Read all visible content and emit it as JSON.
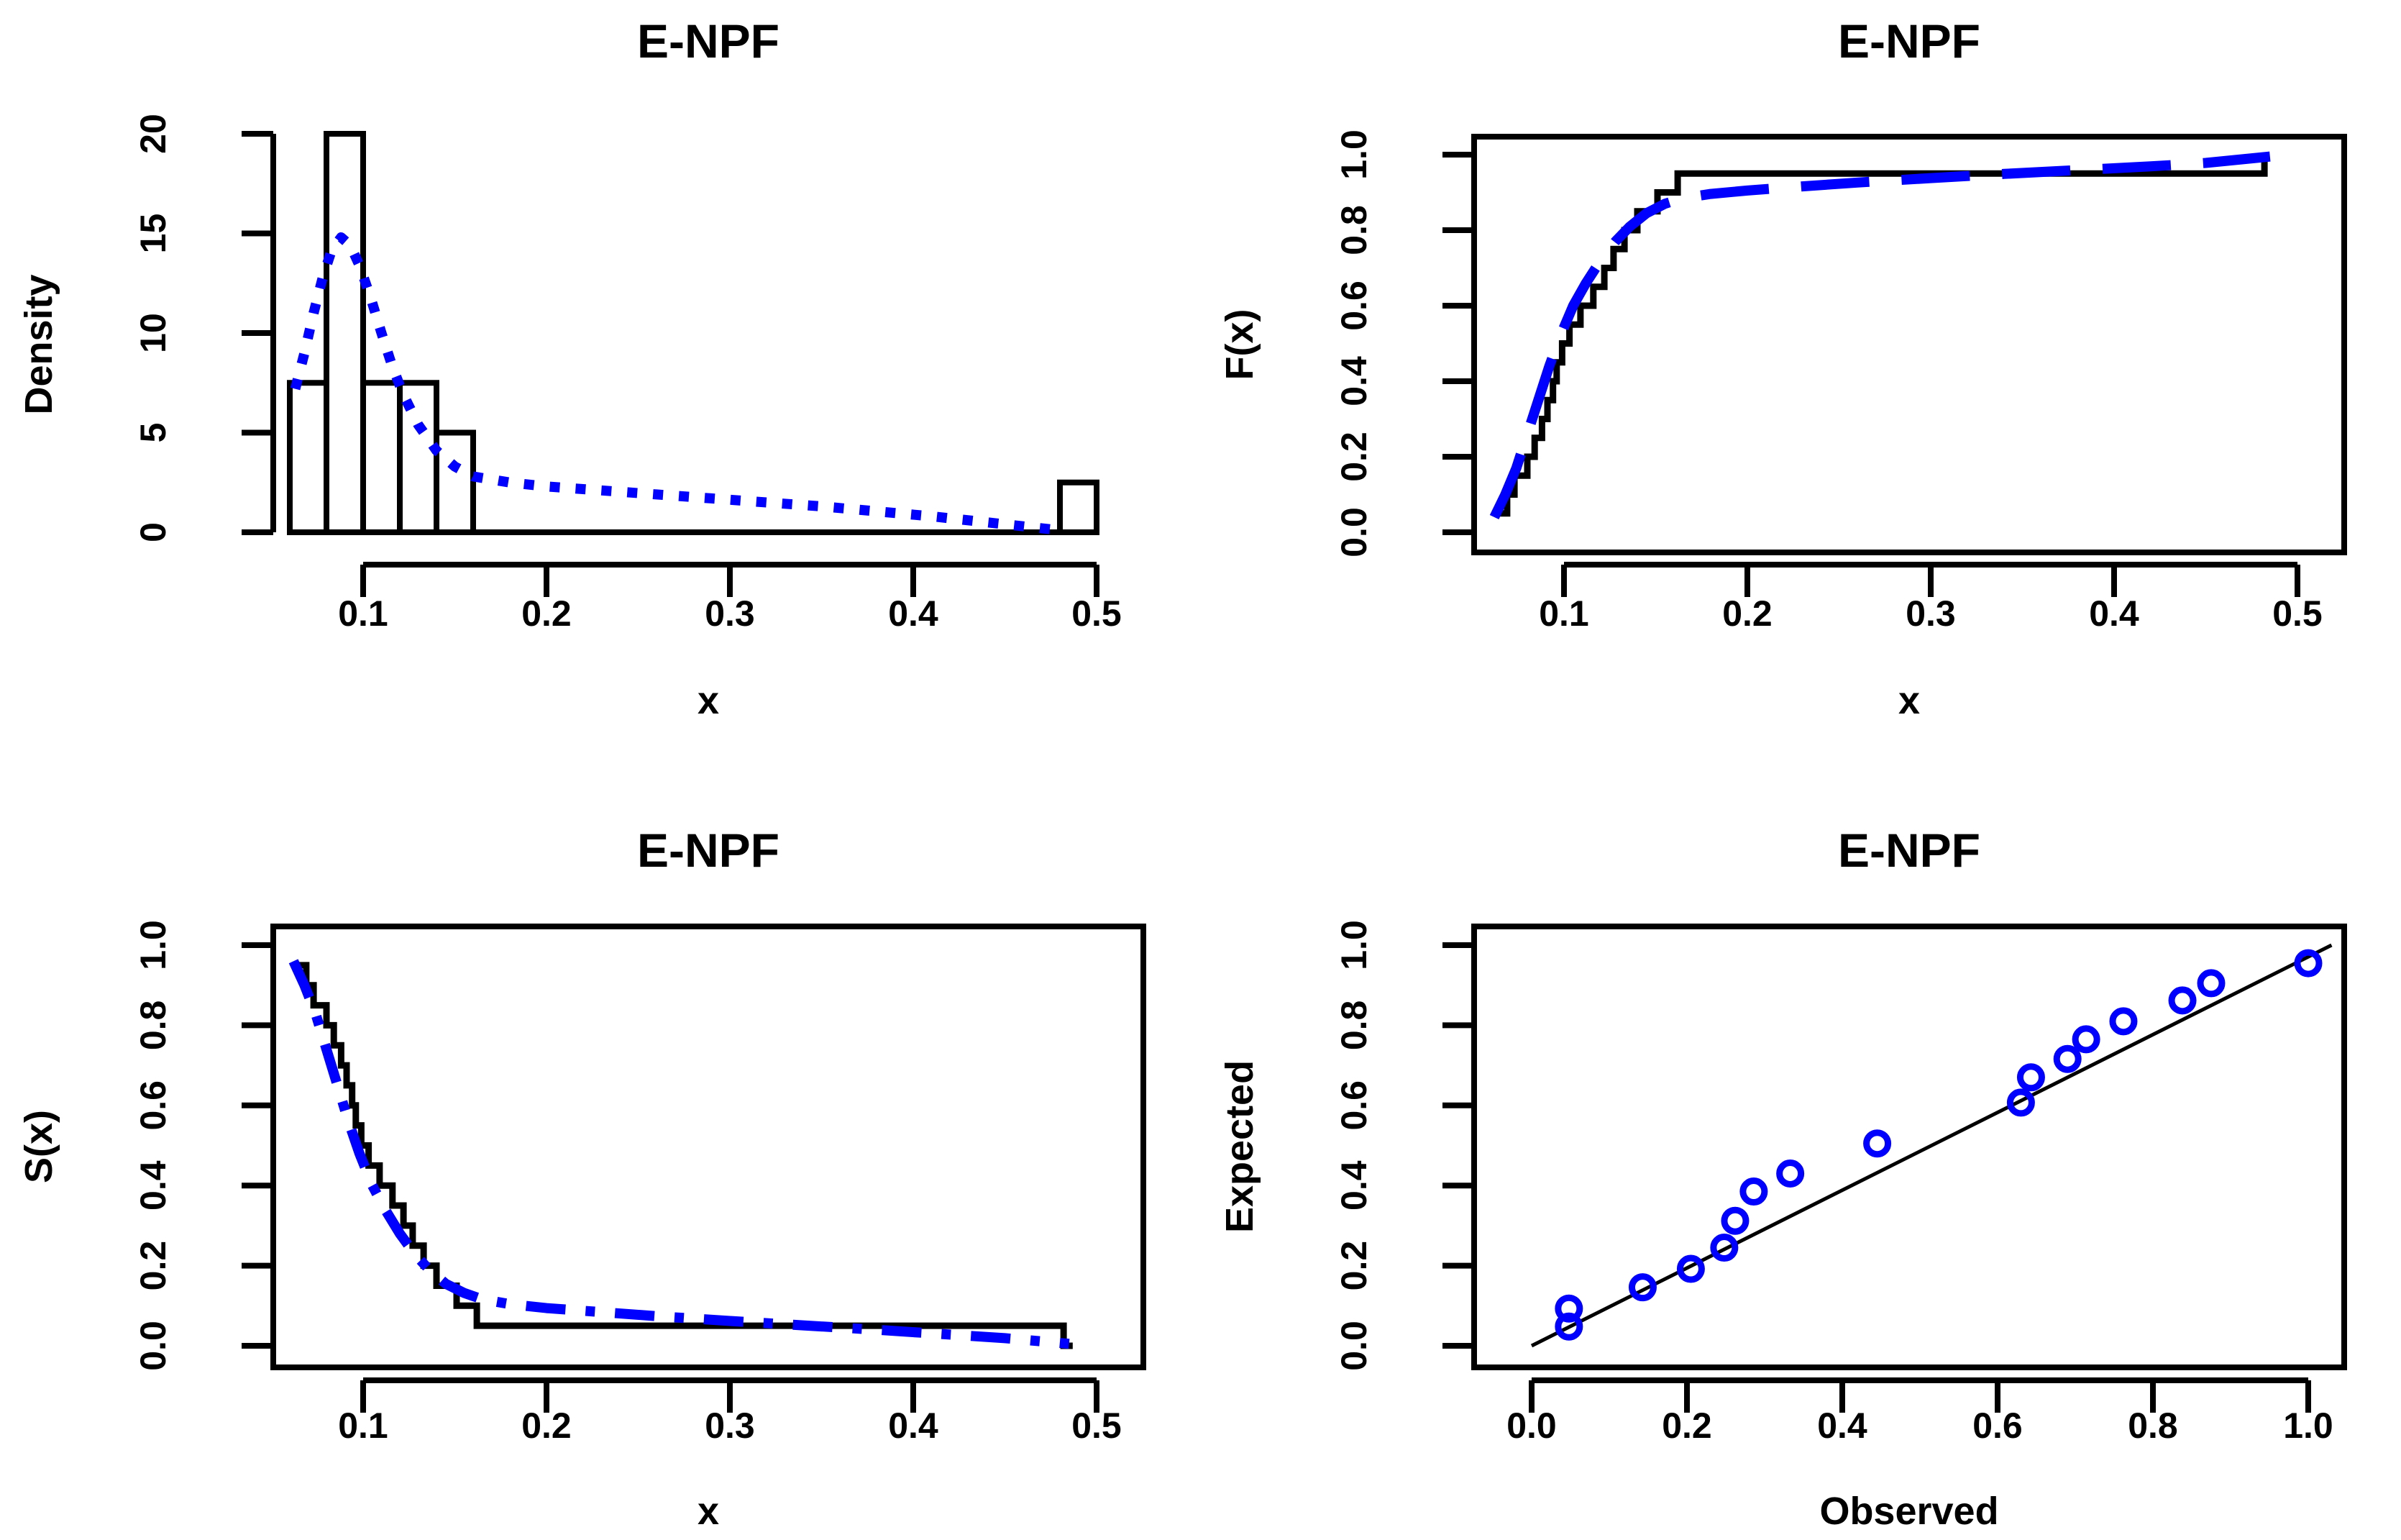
{
  "colors": {
    "accent_blue": "#0000ff",
    "axis_black": "#000000",
    "background": "#ffffff"
  },
  "chart_data": [
    {
      "type": "bar",
      "subtype": "histogram-with-density-curve",
      "title": "E-NPF",
      "xlabel": "x",
      "ylabel": "Density",
      "boxed": false,
      "xlim": [
        0.043,
        0.525
      ],
      "ylim": [
        0,
        20.8
      ],
      "x_ticks": [
        0.1,
        0.2,
        0.3,
        0.4,
        0.5
      ],
      "x_tick_labels": [
        "0.1",
        "0.2",
        "0.3",
        "0.4",
        "0.5"
      ],
      "y_ticks": [
        0,
        5,
        10,
        15,
        20
      ],
      "y_tick_labels": [
        "0",
        "5",
        "10",
        "15",
        "20"
      ],
      "bins": {
        "edges": [
          0.06,
          0.08,
          0.1,
          0.12,
          0.14,
          0.16,
          0.48,
          0.5
        ],
        "densities": [
          7.5,
          20,
          7.5,
          7.5,
          5,
          0,
          2.5
        ]
      },
      "density_curve": {
        "color": "#0000ff",
        "line_style": "dotted",
        "points": [
          [
            0.063,
            7.2
          ],
          [
            0.068,
            9.0
          ],
          [
            0.073,
            11.0
          ],
          [
            0.078,
            12.8
          ],
          [
            0.083,
            14.2
          ],
          [
            0.088,
            14.8
          ],
          [
            0.093,
            14.4
          ],
          [
            0.098,
            13.4
          ],
          [
            0.104,
            11.8
          ],
          [
            0.11,
            10.0
          ],
          [
            0.116,
            8.3
          ],
          [
            0.122,
            6.9
          ],
          [
            0.13,
            5.4
          ],
          [
            0.14,
            4.1
          ],
          [
            0.15,
            3.3
          ],
          [
            0.16,
            2.8
          ],
          [
            0.18,
            2.5
          ],
          [
            0.2,
            2.3
          ],
          [
            0.23,
            2.1
          ],
          [
            0.26,
            1.9
          ],
          [
            0.29,
            1.7
          ],
          [
            0.32,
            1.5
          ],
          [
            0.35,
            1.3
          ],
          [
            0.38,
            1.05
          ],
          [
            0.41,
            0.8
          ],
          [
            0.44,
            0.5
          ],
          [
            0.46,
            0.3
          ],
          [
            0.48,
            0.1
          ]
        ]
      }
    },
    {
      "type": "line",
      "subtype": "empirical-cdf-vs-fitted",
      "title": "E-NPF",
      "xlabel": "x",
      "ylabel": "F(x)",
      "boxed": true,
      "xlim": [
        0.043,
        0.525
      ],
      "ylim": [
        0,
        1
      ],
      "x_ticks": [
        0.1,
        0.2,
        0.3,
        0.4,
        0.5
      ],
      "x_tick_labels": [
        "0.1",
        "0.2",
        "0.3",
        "0.4",
        "0.5"
      ],
      "y_ticks": [
        0,
        0.2,
        0.4,
        0.6,
        0.8,
        1.0
      ],
      "y_tick_labels": [
        "0.0",
        "0.2",
        "0.4",
        "0.6",
        "0.8",
        "1.0"
      ],
      "empirical_step": {
        "color": "#000000",
        "sample": [
          0.065,
          0.069,
          0.073,
          0.08,
          0.084,
          0.088,
          0.091,
          0.094,
          0.096,
          0.099,
          0.103,
          0.109,
          0.116,
          0.122,
          0.127,
          0.133,
          0.14,
          0.151,
          0.162,
          0.482
        ]
      },
      "fitted_curve": {
        "color": "#0000ff",
        "line_style": "longdash",
        "points": [
          [
            0.062,
            0.04
          ],
          [
            0.068,
            0.1
          ],
          [
            0.074,
            0.17
          ],
          [
            0.08,
            0.26
          ],
          [
            0.086,
            0.35
          ],
          [
            0.092,
            0.44
          ],
          [
            0.098,
            0.52
          ],
          [
            0.105,
            0.6
          ],
          [
            0.112,
            0.66
          ],
          [
            0.12,
            0.72
          ],
          [
            0.128,
            0.77
          ],
          [
            0.136,
            0.81
          ],
          [
            0.145,
            0.845
          ],
          [
            0.155,
            0.87
          ],
          [
            0.165,
            0.885
          ],
          [
            0.18,
            0.896
          ],
          [
            0.2,
            0.905
          ],
          [
            0.23,
            0.916
          ],
          [
            0.26,
            0.926
          ],
          [
            0.3,
            0.938
          ],
          [
            0.34,
            0.949
          ],
          [
            0.38,
            0.959
          ],
          [
            0.42,
            0.969
          ],
          [
            0.45,
            0.978
          ],
          [
            0.485,
            0.995
          ]
        ]
      }
    },
    {
      "type": "line",
      "subtype": "empirical-survival-vs-fitted",
      "title": "E-NPF",
      "xlabel": "x",
      "ylabel": "S(x)",
      "boxed": true,
      "xlim": [
        0.043,
        0.525
      ],
      "ylim": [
        0,
        1
      ],
      "x_ticks": [
        0.1,
        0.2,
        0.3,
        0.4,
        0.5
      ],
      "x_tick_labels": [
        "0.1",
        "0.2",
        "0.3",
        "0.4",
        "0.5"
      ],
      "y_ticks": [
        0,
        0.2,
        0.4,
        0.6,
        0.8,
        1.0
      ],
      "y_tick_labels": [
        "0.0",
        "0.2",
        "0.4",
        "0.6",
        "0.8",
        "1.0"
      ],
      "empirical_step": {
        "color": "#000000",
        "sample": [
          0.065,
          0.069,
          0.073,
          0.08,
          0.084,
          0.088,
          0.091,
          0.094,
          0.096,
          0.099,
          0.103,
          0.109,
          0.116,
          0.122,
          0.127,
          0.133,
          0.14,
          0.151,
          0.162,
          0.482
        ]
      },
      "fitted_curve": {
        "color": "#0000ff",
        "line_style": "dashdot",
        "points": [
          [
            0.062,
            0.96
          ],
          [
            0.068,
            0.9
          ],
          [
            0.074,
            0.83
          ],
          [
            0.08,
            0.74
          ],
          [
            0.086,
            0.65
          ],
          [
            0.092,
            0.56
          ],
          [
            0.098,
            0.48
          ],
          [
            0.105,
            0.4
          ],
          [
            0.112,
            0.34
          ],
          [
            0.12,
            0.28
          ],
          [
            0.128,
            0.23
          ],
          [
            0.136,
            0.19
          ],
          [
            0.145,
            0.155
          ],
          [
            0.155,
            0.132
          ],
          [
            0.165,
            0.116
          ],
          [
            0.18,
            0.104
          ],
          [
            0.2,
            0.094
          ],
          [
            0.23,
            0.084
          ],
          [
            0.26,
            0.074
          ],
          [
            0.3,
            0.062
          ],
          [
            0.34,
            0.051
          ],
          [
            0.38,
            0.04
          ],
          [
            0.42,
            0.028
          ],
          [
            0.45,
            0.019
          ],
          [
            0.485,
            0.005
          ]
        ]
      }
    },
    {
      "type": "scatter",
      "subtype": "pp-plot",
      "title": "E-NPF",
      "xlabel": "Observed",
      "ylabel": "Expected",
      "boxed": true,
      "xlim": [
        -0.04,
        1.04
      ],
      "ylim": [
        0,
        1
      ],
      "x_ticks": [
        0,
        0.2,
        0.4,
        0.6,
        0.8,
        1.0
      ],
      "x_tick_labels": [
        "0.0",
        "0.2",
        "0.4",
        "0.6",
        "0.8",
        "1.0"
      ],
      "y_ticks": [
        0,
        0.2,
        0.4,
        0.6,
        0.8,
        1.0
      ],
      "y_tick_labels": [
        "0.0",
        "0.2",
        "0.4",
        "0.6",
        "0.8",
        "1.0"
      ],
      "points": [
        [
          0.048,
          0.048
        ],
        [
          0.048,
          0.093
        ],
        [
          0.143,
          0.146
        ],
        [
          0.205,
          0.192
        ],
        [
          0.248,
          0.245
        ],
        [
          0.262,
          0.312
        ],
        [
          0.286,
          0.385
        ],
        [
          0.333,
          0.43
        ],
        [
          0.445,
          0.505
        ],
        [
          0.63,
          0.607
        ],
        [
          0.643,
          0.67
        ],
        [
          0.69,
          0.716
        ],
        [
          0.714,
          0.765
        ],
        [
          0.762,
          0.81
        ],
        [
          0.838,
          0.862
        ],
        [
          0.875,
          0.905
        ],
        [
          1.0,
          0.955
        ]
      ],
      "point_color": "#0000ff",
      "reference_line": {
        "color": "#000000",
        "from": [
          0.0,
          0.0
        ],
        "to": [
          1.03,
          1.0
        ]
      }
    }
  ]
}
